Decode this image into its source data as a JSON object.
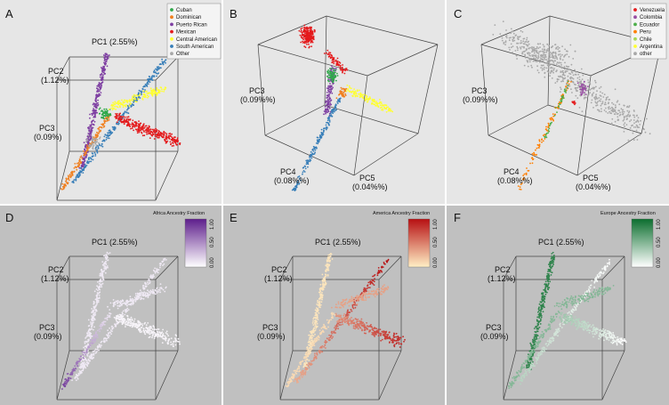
{
  "colors": {
    "panel_top": "#e6e6e6",
    "panel_bottom": "#c0c0c0",
    "edge": "#444444"
  },
  "chart_data": [
    {
      "type": "scatter",
      "panel": "A",
      "axes": [
        "PC1 (2.55%)",
        "PC2\n(1.12%)",
        "PC3\n(0.09%)"
      ],
      "legend": {
        "placement": "top-right",
        "entries": [
          {
            "label": "Cuban",
            "color": "#2fa84a"
          },
          {
            "label": "Dominican",
            "color": "#f07f1e"
          },
          {
            "label": "Puerto Rican",
            "color": "#7e3fa2"
          },
          {
            "label": "Mexican",
            "color": "#e41a1c"
          },
          {
            "label": "Central American",
            "color": "#ffff33"
          },
          {
            "label": "South American",
            "color": "#377eb8"
          },
          {
            "label": "Other",
            "color": "#a8a8a8"
          }
        ]
      }
    },
    {
      "type": "scatter",
      "panel": "B",
      "axes": [
        "PC3\n(0.09%%)",
        "PC4\n(0.08%%)",
        "PC5\n(0.04%%)"
      ]
    },
    {
      "type": "scatter",
      "panel": "C",
      "axes": [
        "PC3\n(0.09%%)",
        "PC4\n(0.08%%)",
        "PC5\n(0.04%%)"
      ],
      "legend": {
        "placement": "top-right",
        "entries": [
          {
            "label": "Venezuela",
            "color": "#e41a1c"
          },
          {
            "label": "Colombia",
            "color": "#984ea3"
          },
          {
            "label": "Ecuador",
            "color": "#4daf4a"
          },
          {
            "label": "Peru",
            "color": "#ff7f00"
          },
          {
            "label": "Chile",
            "color": "#a6d854"
          },
          {
            "label": "Argentina",
            "color": "#ffff33"
          },
          {
            "label": "other",
            "color": "#a8a8a8"
          }
        ]
      }
    },
    {
      "type": "scatter",
      "panel": "D",
      "axes": [
        "PC1 (2.55%)",
        "PC2\n(1.12%)",
        "PC3\n(0.09%)"
      ],
      "colorbar": {
        "title": "Africa Ancestry Fraction",
        "ticks": [
          "0.00",
          "0.50",
          "1.00"
        ],
        "low": "#ffffff",
        "high": "#5e1e8c"
      }
    },
    {
      "type": "scatter",
      "panel": "E",
      "axes": [
        "PC1 (2.55%)",
        "PC2\n(1.12%)",
        "PC3\n(0.09%)"
      ],
      "colorbar": {
        "title": "America Ancestry Fraction",
        "ticks": [
          "0.00",
          "0.50",
          "1.00"
        ],
        "low": "#ffefc5",
        "high": "#b70f12"
      }
    },
    {
      "type": "scatter",
      "panel": "F",
      "axes": [
        "PC1 (2.55%)",
        "PC2\n(1.12%)",
        "PC3\n(0.09%)"
      ],
      "colorbar": {
        "title": "Europe Ancestry Fraction",
        "ticks": [
          "0.00",
          "0.50",
          "1.00"
        ],
        "low": "#ffffff",
        "high": "#0b6e2e"
      }
    }
  ]
}
